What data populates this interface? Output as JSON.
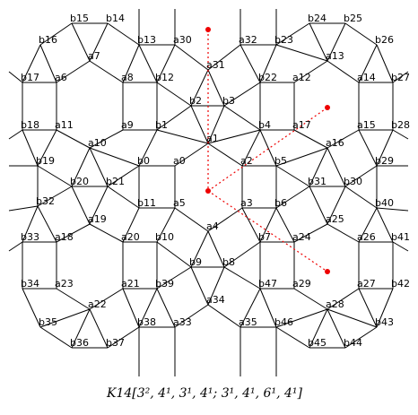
{
  "nodes": [
    "b15",
    "b14",
    "b16",
    "a7",
    "b13",
    "a30",
    "a31",
    "a32",
    "b23",
    "b24",
    "b25",
    "b26",
    "a13",
    "b17",
    "a6",
    "a8",
    "b12",
    "b22",
    "a12",
    "a14",
    "b27",
    "b2",
    "b3",
    "b18",
    "a11",
    "a9",
    "b1",
    "b4",
    "a17",
    "a15",
    "b28",
    "a10",
    "a1",
    "a16",
    "b19",
    "b0",
    "a0",
    "a2",
    "b5",
    "b29",
    "b20",
    "b21",
    "b31",
    "b30",
    "b32",
    "b11",
    "a5",
    "a3",
    "b6",
    "b40",
    "a19",
    "a4",
    "a25",
    "b33",
    "a18",
    "a20",
    "b10",
    "b7",
    "a24",
    "a26",
    "b41",
    "b9",
    "b8",
    "b34",
    "a23",
    "a21",
    "b39",
    "b47",
    "a29",
    "a27",
    "b42",
    "a34",
    "a22",
    "a28",
    "b35",
    "b38",
    "a33",
    "a35",
    "b46",
    "b43",
    "b36",
    "b37",
    "b45",
    "b44"
  ],
  "edges": [
    [
      "b15",
      "b14"
    ],
    [
      "b15",
      "b16"
    ],
    [
      "b14",
      "b13"
    ],
    [
      "b16",
      "a6"
    ],
    [
      "b16",
      "b17"
    ],
    [
      "b17",
      "a6"
    ],
    [
      "a6",
      "a7"
    ],
    [
      "a7",
      "a8"
    ],
    [
      "a7",
      "b14"
    ],
    [
      "a7",
      "b15"
    ],
    [
      "b13",
      "a8"
    ],
    [
      "b13",
      "b12"
    ],
    [
      "b13",
      "a30"
    ],
    [
      "a8",
      "b12"
    ],
    [
      "a30",
      "b12"
    ],
    [
      "a30",
      "a31"
    ],
    [
      "b12",
      "b2"
    ],
    [
      "a8",
      "a9"
    ],
    [
      "a6",
      "a11"
    ],
    [
      "b17",
      "b18"
    ],
    [
      "b18",
      "a11"
    ],
    [
      "a11",
      "a10"
    ],
    [
      "a10",
      "a9"
    ],
    [
      "a9",
      "b1"
    ],
    [
      "b1",
      "b12"
    ],
    [
      "b1",
      "b2"
    ],
    [
      "b2",
      "b3"
    ],
    [
      "b2",
      "a31"
    ],
    [
      "b3",
      "a31"
    ],
    [
      "a31",
      "a32"
    ],
    [
      "b3",
      "b22"
    ],
    [
      "a32",
      "b22"
    ],
    [
      "a32",
      "b23"
    ],
    [
      "b23",
      "b22"
    ],
    [
      "b23",
      "b24"
    ],
    [
      "b23",
      "a13"
    ],
    [
      "b22",
      "a12"
    ],
    [
      "a12",
      "a13"
    ],
    [
      "a13",
      "b24"
    ],
    [
      "a13",
      "b25"
    ],
    [
      "b24",
      "b25"
    ],
    [
      "b25",
      "b26"
    ],
    [
      "b26",
      "a14"
    ],
    [
      "b26",
      "b27"
    ],
    [
      "a14",
      "b27"
    ],
    [
      "a13",
      "a14"
    ],
    [
      "a12",
      "a17"
    ],
    [
      "b4",
      "b3"
    ],
    [
      "b4",
      "b22"
    ],
    [
      "b4",
      "a17"
    ],
    [
      "a14",
      "a15"
    ],
    [
      "b27",
      "b28"
    ],
    [
      "a15",
      "b28"
    ],
    [
      "a15",
      "a16"
    ],
    [
      "a16",
      "a17"
    ],
    [
      "b1",
      "a1"
    ],
    [
      "b2",
      "a1"
    ],
    [
      "b3",
      "a1"
    ],
    [
      "b4",
      "a1"
    ],
    [
      "a1",
      "a0"
    ],
    [
      "a1",
      "a2"
    ],
    [
      "b1",
      "b0"
    ],
    [
      "b0",
      "a0"
    ],
    [
      "a0",
      "a5"
    ],
    [
      "b0",
      "b11"
    ],
    [
      "a10",
      "b0"
    ],
    [
      "a10",
      "b21"
    ],
    [
      "a10",
      "b20"
    ],
    [
      "a11",
      "b19"
    ],
    [
      "b18",
      "b19"
    ],
    [
      "b19",
      "b20"
    ],
    [
      "b20",
      "b21"
    ],
    [
      "b21",
      "b0"
    ],
    [
      "b21",
      "b11"
    ],
    [
      "b19",
      "b32"
    ],
    [
      "b20",
      "b32"
    ],
    [
      "b20",
      "a19"
    ],
    [
      "b21",
      "a19"
    ],
    [
      "a2",
      "b4"
    ],
    [
      "a2",
      "b5"
    ],
    [
      "b5",
      "b4"
    ],
    [
      "b5",
      "a16"
    ],
    [
      "b5",
      "b31"
    ],
    [
      "a16",
      "b31"
    ],
    [
      "a16",
      "b30"
    ],
    [
      "b31",
      "b30"
    ],
    [
      "a15",
      "b29"
    ],
    [
      "b28",
      "b29"
    ],
    [
      "b29",
      "b30"
    ],
    [
      "b29",
      "b40"
    ],
    [
      "b30",
      "b40"
    ],
    [
      "a2",
      "a3"
    ],
    [
      "b5",
      "b6"
    ],
    [
      "a3",
      "b6"
    ],
    [
      "b31",
      "a25"
    ],
    [
      "b30",
      "a25"
    ],
    [
      "b31",
      "b6"
    ],
    [
      "b11",
      "a5"
    ],
    [
      "a5",
      "a4"
    ],
    [
      "a3",
      "a4"
    ],
    [
      "a3",
      "b7"
    ],
    [
      "b6",
      "b7"
    ],
    [
      "b6",
      "a24"
    ],
    [
      "a25",
      "a24"
    ],
    [
      "a25",
      "a26"
    ],
    [
      "b40",
      "a26"
    ],
    [
      "b40",
      "b41"
    ],
    [
      "a26",
      "b41"
    ],
    [
      "b32",
      "b33"
    ],
    [
      "b32",
      "a18"
    ],
    [
      "b33",
      "a18"
    ],
    [
      "a18",
      "a19"
    ],
    [
      "a19",
      "a20"
    ],
    [
      "a20",
      "b11"
    ],
    [
      "a20",
      "b10"
    ],
    [
      "b10",
      "a5"
    ],
    [
      "b10",
      "b9"
    ],
    [
      "a4",
      "b9"
    ],
    [
      "a4",
      "b8"
    ],
    [
      "b8",
      "b9"
    ],
    [
      "b8",
      "b7"
    ],
    [
      "b7",
      "a24"
    ],
    [
      "a24",
      "a29"
    ],
    [
      "b7",
      "b47"
    ],
    [
      "b33",
      "b34"
    ],
    [
      "a18",
      "a23"
    ],
    [
      "b34",
      "a23"
    ],
    [
      "a20",
      "a21"
    ],
    [
      "b10",
      "b39"
    ],
    [
      "a21",
      "b39"
    ],
    [
      "b9",
      "b39"
    ],
    [
      "b9",
      "a34"
    ],
    [
      "b8",
      "a34"
    ],
    [
      "b8",
      "b47"
    ],
    [
      "b47",
      "a29"
    ],
    [
      "a29",
      "a28"
    ],
    [
      "a27",
      "a26"
    ],
    [
      "b41",
      "b42"
    ],
    [
      "a27",
      "b42"
    ],
    [
      "a27",
      "a28"
    ],
    [
      "a23",
      "a22"
    ],
    [
      "a22",
      "a21"
    ],
    [
      "a22",
      "b35"
    ],
    [
      "a22",
      "b36"
    ],
    [
      "a22",
      "b37"
    ],
    [
      "b34",
      "b35"
    ],
    [
      "b35",
      "b36"
    ],
    [
      "b36",
      "b37"
    ],
    [
      "b37",
      "b38"
    ],
    [
      "a21",
      "b38"
    ],
    [
      "b39",
      "b38"
    ],
    [
      "b39",
      "a33"
    ],
    [
      "b38",
      "a33"
    ],
    [
      "a33",
      "a34"
    ],
    [
      "a34",
      "a35"
    ],
    [
      "a35",
      "b47"
    ],
    [
      "a35",
      "b46"
    ],
    [
      "b46",
      "b47"
    ],
    [
      "b46",
      "a28"
    ],
    [
      "b46",
      "b45"
    ],
    [
      "a28",
      "b45"
    ],
    [
      "a28",
      "b44"
    ],
    [
      "b45",
      "b44"
    ],
    [
      "b44",
      "b43"
    ],
    [
      "b43",
      "a27"
    ],
    [
      "b43",
      "b42"
    ],
    [
      "a28",
      "b43"
    ]
  ],
  "caption": "K14[3², 4¹, 3¹, 4¹; 3¹, 4¹, 6¹, 4¹]"
}
